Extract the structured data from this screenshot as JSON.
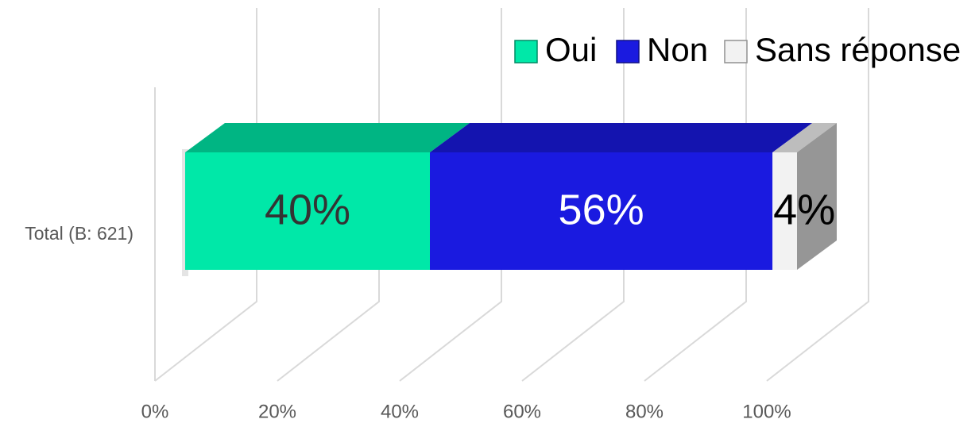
{
  "chart_data": {
    "type": "bar3d_stacked_horizontal",
    "categories": [
      "Total (B: 621)"
    ],
    "series": [
      {
        "name": "Oui",
        "color": "#00e8a8",
        "label_color": "#333333",
        "values": [
          40
        ],
        "value_labels": [
          "40%"
        ]
      },
      {
        "name": "Non",
        "color": "#1a1ae0",
        "label_color": "#ffffff",
        "values": [
          56
        ],
        "value_labels": [
          "56%"
        ]
      },
      {
        "name": "Sans réponse",
        "color": "#f2f2f2",
        "label_color": "#000000",
        "values": [
          4
        ],
        "value_labels": [
          "4%"
        ]
      }
    ],
    "xlim": [
      0,
      100
    ],
    "xticks": [
      {
        "value": 0,
        "label": "0%"
      },
      {
        "value": 20,
        "label": "20%"
      },
      {
        "value": 40,
        "label": "40%"
      },
      {
        "value": 60,
        "label": "60%"
      },
      {
        "value": 80,
        "label": "80%"
      },
      {
        "value": 100,
        "label": "100%"
      }
    ],
    "grid": true,
    "legend": "top-right"
  }
}
